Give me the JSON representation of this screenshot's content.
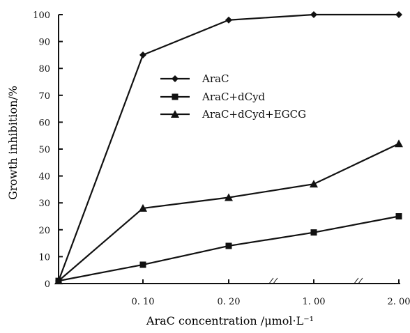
{
  "chart_data": {
    "type": "line",
    "categories": [
      "0",
      "0. 10",
      "0. 20",
      "1. 00",
      "2. 00"
    ],
    "xlabel": "AraC concentration /μmol·L⁻¹",
    "ylabel": "Growth inhibition/%",
    "ylim": [
      0,
      100
    ],
    "yticks": [
      "0",
      "10",
      "20",
      "30",
      "40",
      "50",
      "60",
      "70",
      "80",
      "90",
      "100"
    ],
    "grid": false,
    "legend_position": "upper-center",
    "series": [
      {
        "name": "AraC",
        "marker": "diamond",
        "values": [
          1,
          85,
          98,
          100,
          100
        ]
      },
      {
        "name": "AraC+dCyd",
        "marker": "square",
        "values": [
          1,
          7,
          14,
          19,
          25
        ]
      },
      {
        "name": "AraC+dCyd+EGCG",
        "marker": "triangle",
        "values": [
          1,
          28,
          32,
          37,
          52
        ]
      }
    ],
    "colors": {
      "axis": "#111111",
      "series": "#111111"
    }
  }
}
